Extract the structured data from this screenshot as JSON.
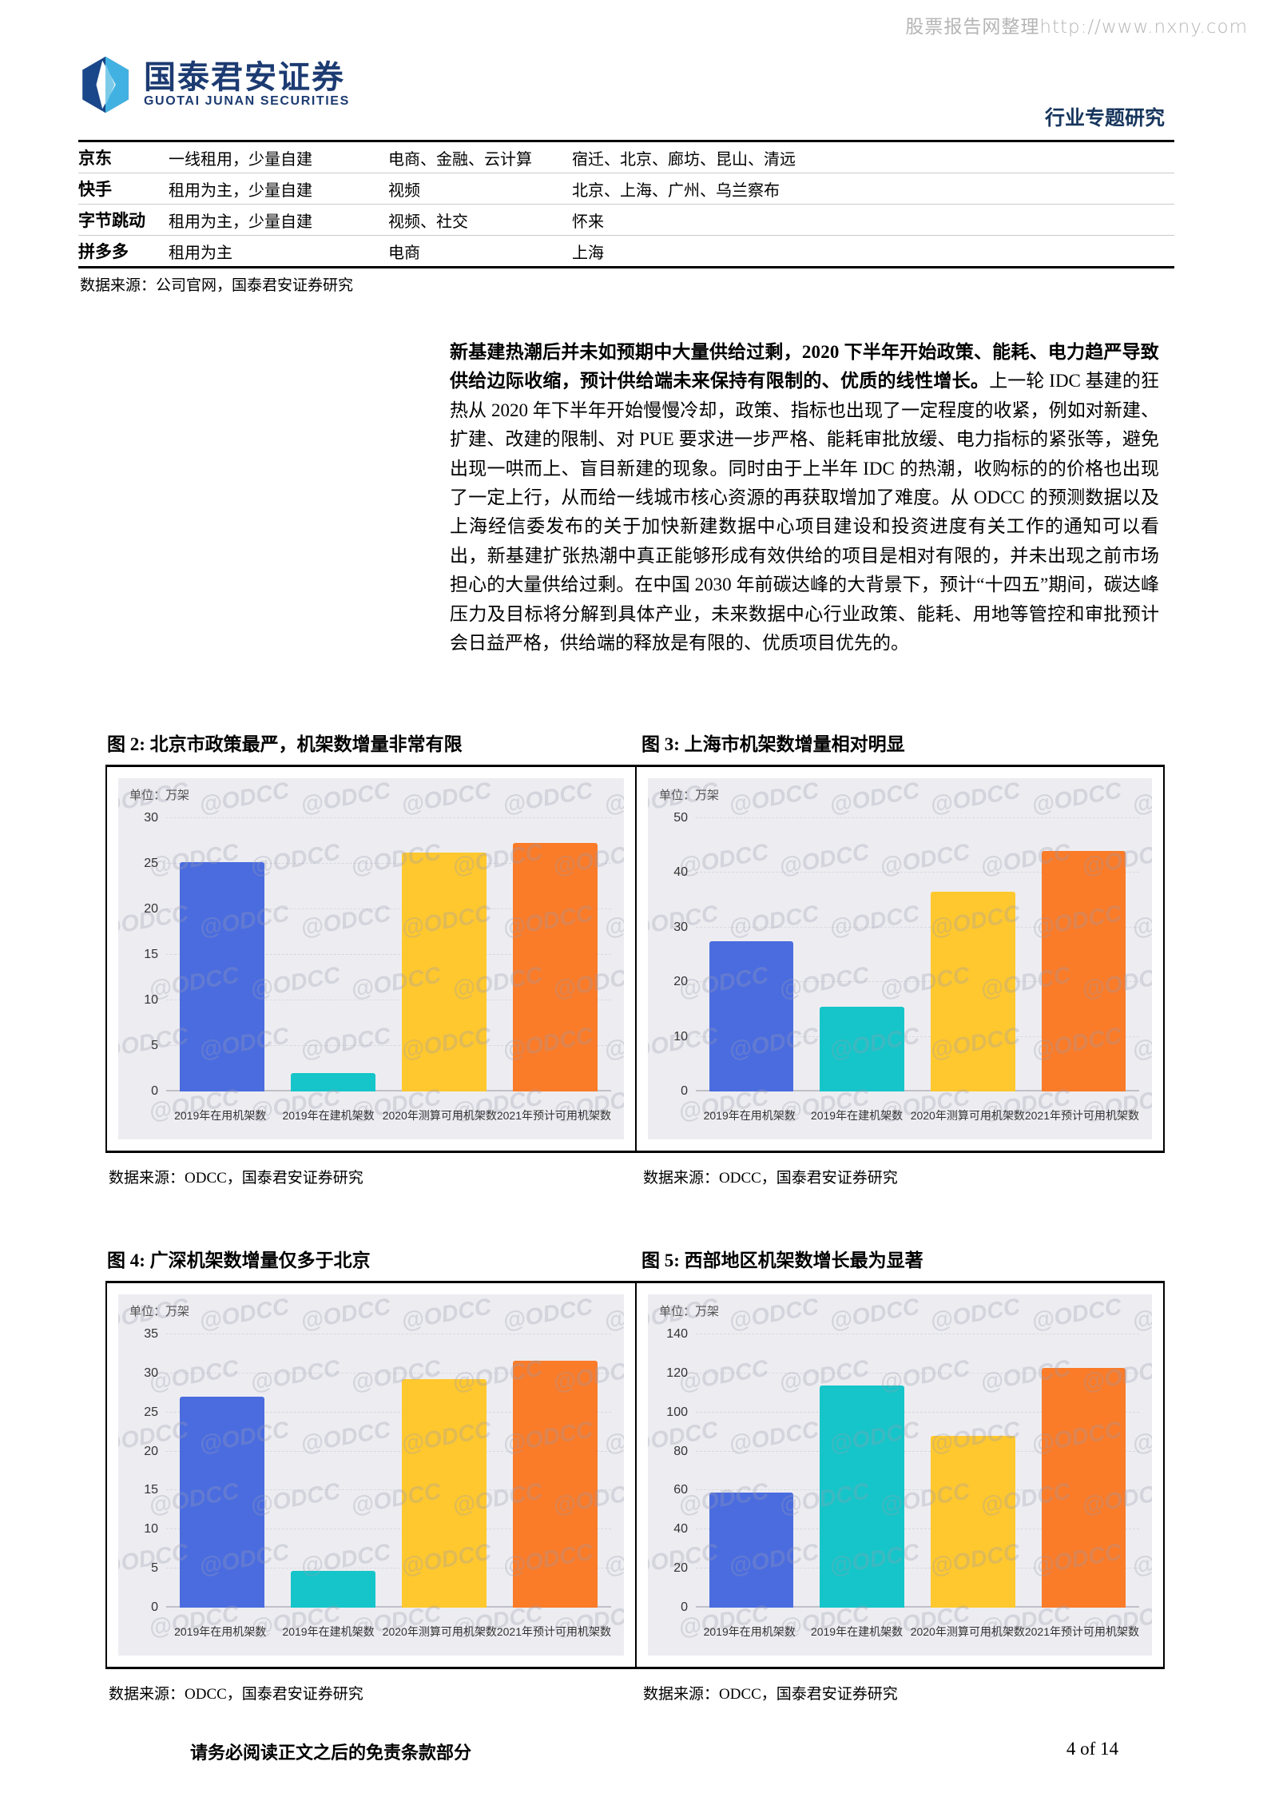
{
  "watermark_top": "股票报告网整理http://www.nxny.com",
  "header": {
    "brand_cn": "国泰君安证券",
    "brand_en": "GUOTAI JUNAN SECURITIES",
    "report_type": "行业专题研究"
  },
  "table": {
    "rows": [
      {
        "company": "京东",
        "build_mode": "一线租用，少量自建",
        "business": "电商、金融、云计算",
        "locations": "宿迁、北京、廊坊、昆山、清远"
      },
      {
        "company": "快手",
        "build_mode": "租用为主，少量自建",
        "business": "视频",
        "locations": "北京、上海、广州、乌兰察布"
      },
      {
        "company": "字节跳动",
        "build_mode": "租用为主，少量自建",
        "business": "视频、社交",
        "locations": "怀来"
      },
      {
        "company": "拼多多",
        "build_mode": "租用为主",
        "business": "电商",
        "locations": "上海"
      }
    ],
    "source": "数据来源：公司官网，国泰君安证券研究"
  },
  "paragraph": {
    "bold_lead": "新基建热潮后并未如预期中大量供给过剩，2020 下半年开始政策、能耗、电力趋严导致供给边际收缩，预计供给端未来保持有限制的、优质的线性增长。",
    "rest": "上一轮 IDC 基建的狂热从 2020 年下半年开始慢慢冷却，政策、指标也出现了一定程度的收紧，例如对新建、扩建、改建的限制、对 PUE 要求进一步严格、能耗审批放缓、电力指标的紧张等，避免出现一哄而上、盲目新建的现象。同时由于上半年 IDC 的热潮，收购标的的价格也出现了一定上行，从而给一线城市核心资源的再获取增加了难度。从 ODCC 的预测数据以及上海经信委发布的关于加快新建数据中心项目建设和投资进度有关工作的通知可以看出，新基建扩张热潮中真正能够形成有效供给的项目是相对有限的，并未出现之前市场担心的大量供给过剩。在中国 2030 年前碳达峰的大背景下，预计“十四五”期间，碳达峰压力及目标将分解到具体产业，未来数据中心行业政策、能耗、用地等管控和审批预计会日益严格，供给端的释放是有限的、优质项目优先的。"
  },
  "chart_data": [
    {
      "type": "bar",
      "figure_label": "图 2: 北京市政策最严，机架数增量非常有限",
      "unit": "单位：万架",
      "categories": [
        "2019年在用机架数",
        "2019年在建机架数",
        "2020年测算可用机架数",
        "2021年预计可用机架数"
      ],
      "values": [
        25.2,
        2,
        26.2,
        27.3
      ],
      "ylim": [
        0,
        30
      ],
      "ytick": 5,
      "colors": [
        "#4a6cdf",
        "#15c5c9",
        "#ffc82e",
        "#fa7b28"
      ],
      "grid": "dashed-horizontal",
      "legend": "none",
      "watermark": "@ODCC",
      "source": "数据来源：ODCC，国泰君安证券研究"
    },
    {
      "type": "bar",
      "figure_label": "图 3: 上海市机架数增量相对明显",
      "unit": "单位：万架",
      "categories": [
        "2019年在用机架数",
        "2019年在建机架数",
        "2020年测算可用机架数",
        "2021年预计可用机架数"
      ],
      "values": [
        27.5,
        15.5,
        36.5,
        44
      ],
      "ylim": [
        0,
        50
      ],
      "ytick": 10,
      "colors": [
        "#4a6cdf",
        "#15c5c9",
        "#ffc82e",
        "#fa7b28"
      ],
      "grid": "dashed-horizontal",
      "legend": "none",
      "watermark": "@ODCC",
      "source": "数据来源：ODCC，国泰君安证券研究"
    },
    {
      "type": "bar",
      "figure_label": "图 4: 广深机架数增量仅多于北京",
      "unit": "单位：万架",
      "categories": [
        "2019年在用机架数",
        "2019年在建机架数",
        "2020年测算可用机架数",
        "2021年预计可用机架数"
      ],
      "values": [
        27,
        4.7,
        29.3,
        31.6
      ],
      "ylim": [
        0,
        35
      ],
      "ytick": 5,
      "colors": [
        "#4a6cdf",
        "#15c5c9",
        "#ffc82e",
        "#fa7b28"
      ],
      "grid": "dashed-horizontal",
      "legend": "none",
      "watermark": "@ODCC",
      "source": "数据来源：ODCC，国泰君安证券研究"
    },
    {
      "type": "bar",
      "figure_label": "图 5: 西部地区机架数增长最为显著",
      "unit": "单位：万架",
      "categories": [
        "2019年在用机架数",
        "2019年在建机架数",
        "2020年测算可用机架数",
        "2021年预计可用机架数"
      ],
      "values": [
        59,
        114,
        88,
        123
      ],
      "ylim": [
        0,
        140
      ],
      "ytick": 20,
      "colors": [
        "#4a6cdf",
        "#15c5c9",
        "#ffc82e",
        "#fa7b28"
      ],
      "grid": "dashed-horizontal",
      "legend": "none",
      "watermark": "@ODCC",
      "source": "数据来源：ODCC，国泰君安证券研究"
    }
  ],
  "footer": {
    "disclaimer": "请务必阅读正文之后的免责条款部分",
    "page": "4 of 14"
  }
}
